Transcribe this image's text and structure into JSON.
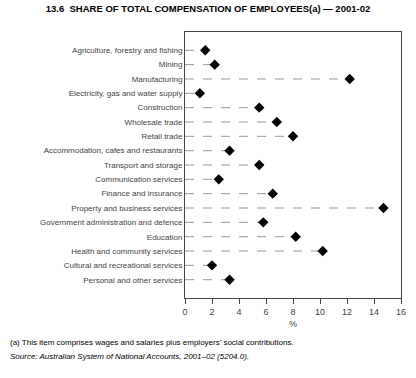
{
  "chart_data": {
    "type": "dot",
    "title": "13.6  SHARE OF TOTAL COMPENSATION OF EMPLOYEES(a) — 2001-02",
    "categories": [
      "Agriculture, forestry and fishing",
      "Mining",
      "Manufacturing",
      "Electricity, gas and water supply",
      "Construction",
      "Wholesale trade",
      "Retail trade",
      "Accommodation, cafes and restaurants",
      "Transport and storage",
      "Communication services",
      "Finance and insurance",
      "Property and business services",
      "Government administration and defence",
      "Education",
      "Health and community services",
      "Cultural and recreational services",
      "Personal and other services"
    ],
    "values": [
      1.5,
      2.2,
      12.2,
      1.1,
      5.5,
      6.8,
      8.0,
      3.3,
      5.5,
      2.5,
      6.5,
      14.7,
      5.8,
      8.2,
      10.2,
      2.0,
      3.3
    ],
    "orientation": "horizontal",
    "xlabel": "%",
    "xlim": [
      0,
      16
    ],
    "xticks": [
      0,
      2,
      4,
      6,
      8,
      10,
      12,
      14,
      16
    ],
    "color": "black",
    "marker": "diamond",
    "line_style": "dashed",
    "grid": false,
    "annotations": [
      "(a) This item comprises wages and salaries plus employers’ social contributions.",
      "Source: Australian System of National Accounts, 2001–02 (5204.0)."
    ]
  }
}
